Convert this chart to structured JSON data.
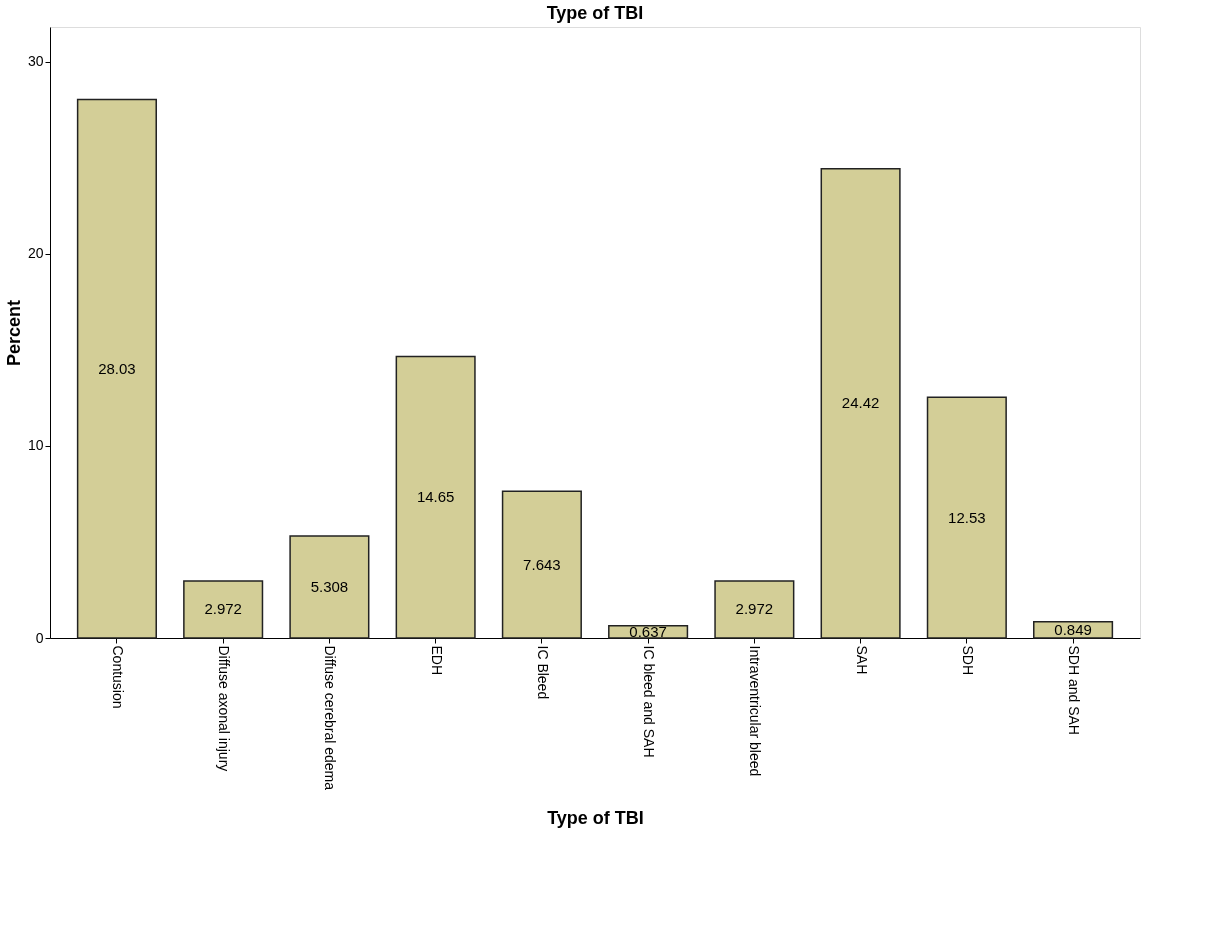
{
  "chart_data": {
    "type": "bar",
    "title": "Type of TBI",
    "xlabel": "Type of TBI",
    "ylabel": "Percent",
    "categories": [
      "Contusion",
      "Diffuse axonal injury",
      "Diffuse cerebral edema",
      "EDH",
      "IC Bleed",
      "IC bleed and SAH",
      "Intraventricular bleed",
      "SAH",
      "SDH",
      "SDH and SAH"
    ],
    "values": [
      28.03,
      2.972,
      5.308,
      14.65,
      7.643,
      0.637,
      2.972,
      24.42,
      12.53,
      0.849
    ],
    "color": "#d3ce97",
    "ylim": [
      0,
      31.8
    ],
    "yticks": [
      0,
      10,
      20,
      30
    ],
    "grid": false,
    "data_labels": true
  }
}
